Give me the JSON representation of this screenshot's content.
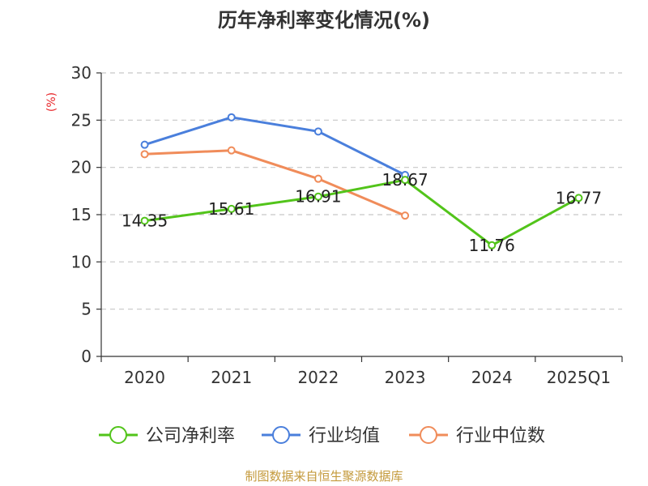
{
  "chart_data": {
    "type": "line",
    "title": "历年净利率变化情况(%)",
    "ylabel": "(%)",
    "xlabel": "",
    "categories": [
      "2020",
      "2021",
      "2022",
      "2023",
      "2024",
      "2025Q1"
    ],
    "ylim": [
      0,
      30
    ],
    "yticks": [
      0,
      5,
      10,
      15,
      20,
      25,
      30
    ],
    "grid": true,
    "legend_position": "bottom",
    "series": [
      {
        "name": "公司净利率",
        "color": "#52c41a",
        "values": [
          14.35,
          15.61,
          16.91,
          18.67,
          11.76,
          16.77
        ],
        "labels": [
          "14.35",
          "15.61",
          "16.91",
          "18.67",
          "11.76",
          "16.77"
        ]
      },
      {
        "name": "行业均值",
        "color": "#4a7fdc",
        "values": [
          22.4,
          25.3,
          23.8,
          19.2,
          null,
          null
        ]
      },
      {
        "name": "行业中位数",
        "color": "#f08c5a",
        "values": [
          21.4,
          21.8,
          18.8,
          14.9,
          null,
          null
        ]
      }
    ]
  },
  "source": "制图数据来自恒生聚源数据库"
}
